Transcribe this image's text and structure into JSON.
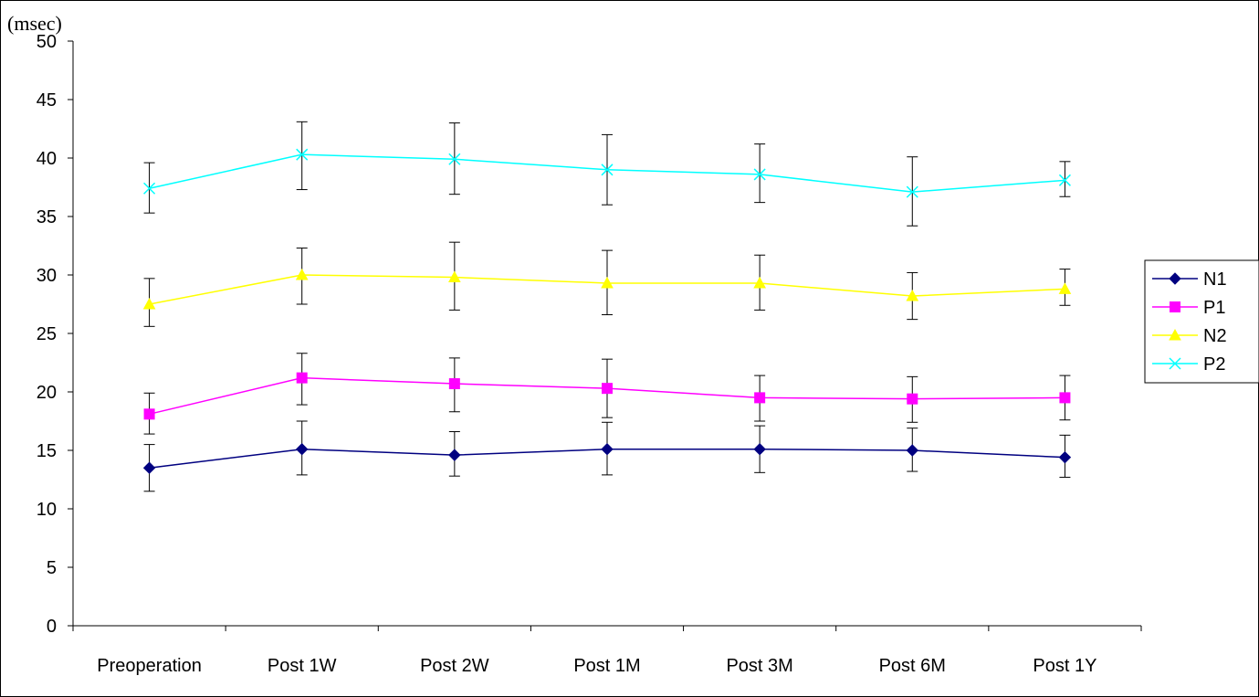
{
  "chart_data": {
    "type": "line",
    "unit_label": "(msec)",
    "categories": [
      "Preoperation",
      "Post 1W",
      "Post 2W",
      "Post 1M",
      "Post 3M",
      "Post 6M",
      "Post 1Y"
    ],
    "ylim": [
      0,
      50
    ],
    "yticks": [
      0,
      5,
      10,
      15,
      20,
      25,
      30,
      35,
      40,
      45,
      50
    ],
    "error_bars": true,
    "grid": false,
    "legend_position": "right",
    "series": [
      {
        "name": "N1",
        "color": "#000080",
        "marker": "diamond",
        "values": [
          13.5,
          15.1,
          14.6,
          15.1,
          15.1,
          15.0,
          14.4
        ],
        "err_upper": [
          15.5,
          17.5,
          16.6,
          17.4,
          17.1,
          16.9,
          16.3
        ],
        "err_lower": [
          11.5,
          12.9,
          12.8,
          12.9,
          13.1,
          13.2,
          12.7
        ]
      },
      {
        "name": "P1",
        "color": "#FF00FF",
        "marker": "square",
        "values": [
          18.1,
          21.2,
          20.7,
          20.3,
          19.5,
          19.4,
          19.5
        ],
        "err_upper": [
          19.9,
          23.3,
          22.9,
          22.8,
          21.4,
          21.3,
          21.4
        ],
        "err_lower": [
          16.4,
          18.9,
          18.3,
          17.8,
          17.5,
          17.4,
          17.6
        ]
      },
      {
        "name": "N2",
        "color": "#FFFF00",
        "marker": "triangle",
        "values": [
          27.5,
          30.0,
          29.8,
          29.3,
          29.3,
          28.2,
          28.8
        ],
        "err_upper": [
          29.7,
          32.3,
          32.8,
          32.1,
          31.7,
          30.2,
          30.5
        ],
        "err_lower": [
          25.6,
          27.5,
          27.0,
          26.6,
          27.0,
          26.2,
          27.4
        ]
      },
      {
        "name": "P2",
        "color": "#00FFFF",
        "marker": "x",
        "values": [
          37.4,
          40.3,
          39.9,
          39.0,
          38.6,
          37.1,
          38.1
        ],
        "err_upper": [
          39.6,
          43.1,
          43.0,
          42.0,
          41.2,
          40.1,
          39.7
        ],
        "err_lower": [
          35.3,
          37.3,
          36.9,
          36.0,
          36.2,
          34.2,
          36.7
        ]
      }
    ]
  }
}
